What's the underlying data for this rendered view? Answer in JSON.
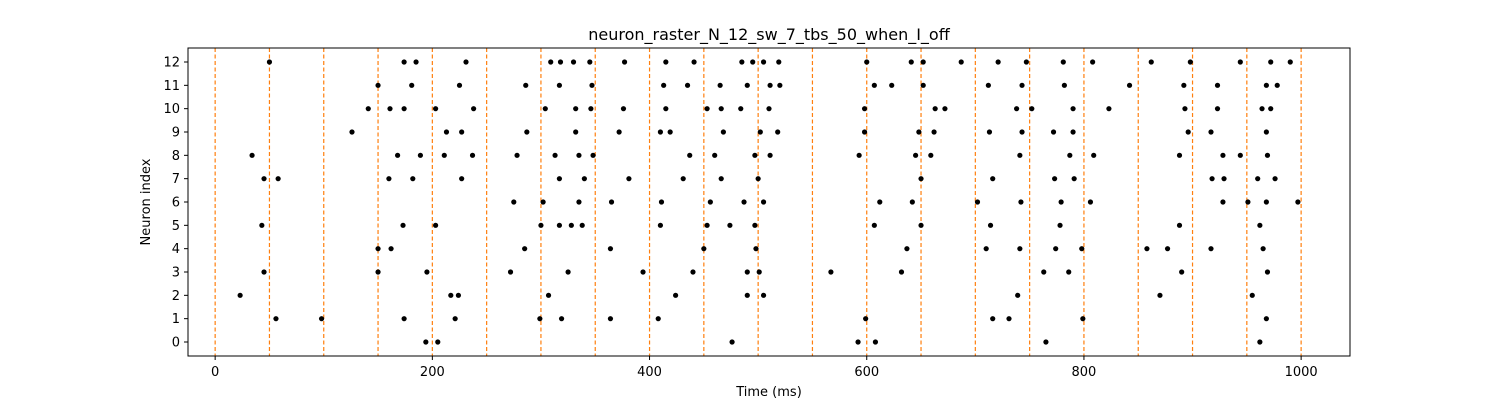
{
  "chart_data": {
    "type": "scatter",
    "title": "neuron_raster_N_12_sw_7_tbs_50_when_I_off",
    "xlabel": "Time (ms)",
    "ylabel": "Neuron index",
    "xlim": [
      -25,
      1045
    ],
    "ylim": [
      -0.6,
      12.6
    ],
    "x_ticks": [
      0,
      200,
      400,
      600,
      800,
      1000
    ],
    "y_ticks": [
      0,
      1,
      2,
      3,
      4,
      5,
      6,
      7,
      8,
      9,
      10,
      11,
      12
    ],
    "grid": false,
    "vlines": {
      "positions": [
        0,
        50,
        100,
        150,
        200,
        250,
        300,
        350,
        400,
        450,
        500,
        550,
        600,
        650,
        700,
        750,
        800,
        850,
        900,
        950,
        1000
      ],
      "color": "#ff7f0e",
      "style": "dashed"
    },
    "marker_color": "#000000",
    "spikes": [
      {
        "neuron": 12,
        "times": [
          50,
          174,
          185,
          231,
          309,
          318,
          330,
          345,
          377,
          415,
          441,
          485,
          495,
          505,
          519,
          600,
          641,
          652,
          687,
          721,
          747,
          781,
          808,
          862,
          898,
          944,
          972,
          990
        ]
      },
      {
        "neuron": 11,
        "times": [
          150,
          181,
          225,
          286,
          317,
          347,
          413,
          435,
          465,
          490,
          511,
          520,
          607,
          623,
          652,
          712,
          743,
          782,
          842,
          892,
          923,
          968,
          978
        ]
      },
      {
        "neuron": 10,
        "times": [
          141,
          161,
          174,
          203,
          238,
          304,
          332,
          346,
          376,
          415,
          453,
          466,
          484,
          510,
          598,
          663,
          672,
          738,
          752,
          790,
          823,
          893,
          923,
          964,
          972
        ]
      },
      {
        "neuron": 9,
        "times": [
          126,
          213,
          227,
          287,
          332,
          372,
          410,
          419,
          468,
          502,
          518,
          598,
          648,
          662,
          713,
          743,
          772,
          790,
          896,
          917,
          968
        ]
      },
      {
        "neuron": 8,
        "times": [
          34,
          168,
          189,
          211,
          237,
          278,
          313,
          335,
          348,
          437,
          460,
          497,
          511,
          593,
          645,
          659,
          741,
          787,
          809,
          888,
          928,
          944,
          969
        ]
      },
      {
        "neuron": 7,
        "times": [
          45,
          58,
          160,
          182,
          227,
          317,
          340,
          381,
          431,
          466,
          500,
          650,
          716,
          773,
          791,
          918,
          929,
          960,
          976
        ]
      },
      {
        "neuron": 6,
        "times": [
          275,
          302,
          335,
          365,
          411,
          456,
          487,
          505,
          612,
          642,
          702,
          742,
          779,
          806,
          928,
          951,
          968,
          997
        ]
      },
      {
        "neuron": 5,
        "times": [
          43,
          173,
          203,
          300,
          317,
          328,
          338,
          410,
          453,
          474,
          497,
          607,
          650,
          714,
          778,
          888,
          962
        ]
      },
      {
        "neuron": 4,
        "times": [
          150,
          162,
          285,
          364,
          450,
          498,
          637,
          710,
          741,
          774,
          798,
          858,
          877,
          917,
          965
        ]
      },
      {
        "neuron": 3,
        "times": [
          45,
          150,
          195,
          272,
          325,
          394,
          440,
          490,
          501,
          567,
          632,
          763,
          786,
          890,
          969
        ]
      },
      {
        "neuron": 2,
        "times": [
          23,
          217,
          224,
          307,
          424,
          490,
          505,
          739,
          870,
          955
        ]
      },
      {
        "neuron": 1,
        "times": [
          56,
          98,
          174,
          221,
          299,
          319,
          364,
          408,
          599,
          716,
          731,
          799,
          968
        ]
      },
      {
        "neuron": 0,
        "times": [
          194,
          205,
          476,
          592,
          608,
          765,
          962
        ]
      }
    ]
  }
}
